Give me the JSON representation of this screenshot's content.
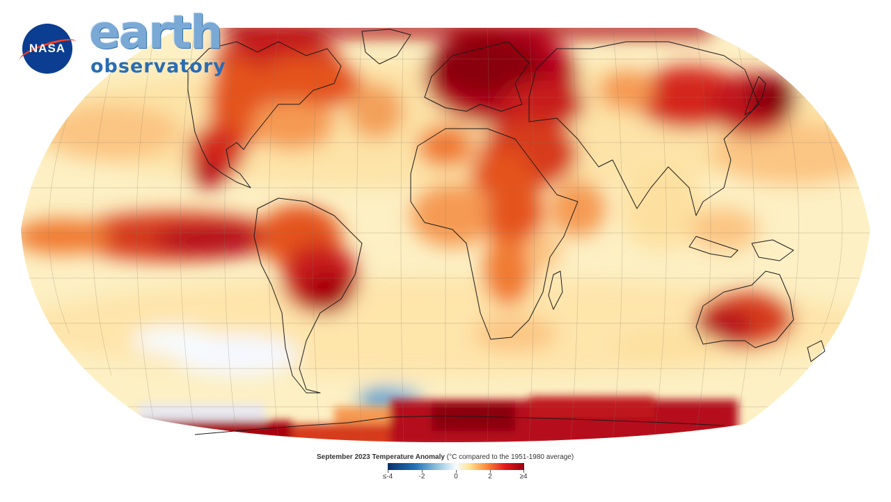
{
  "logo": {
    "agency": "NASA",
    "title_line_1": "earth",
    "title_line_2": "observatory"
  },
  "legend": {
    "title_bold": "September 2023 Temperature Anomaly",
    "title_note": "(°C compared to the 1951-1980 average)",
    "ticks": [
      "≤-4",
      "-2",
      "0",
      "2",
      "≥4"
    ]
  },
  "colors": {
    "neutral": "#fffbe6",
    "warm_light": "#fde7a6",
    "warm": "#fdae61",
    "hot": "#e8551f",
    "hotter": "#c81e1a",
    "hottest": "#8b0010",
    "cool": "#9ecae1",
    "cold": "#2171b5"
  }
}
